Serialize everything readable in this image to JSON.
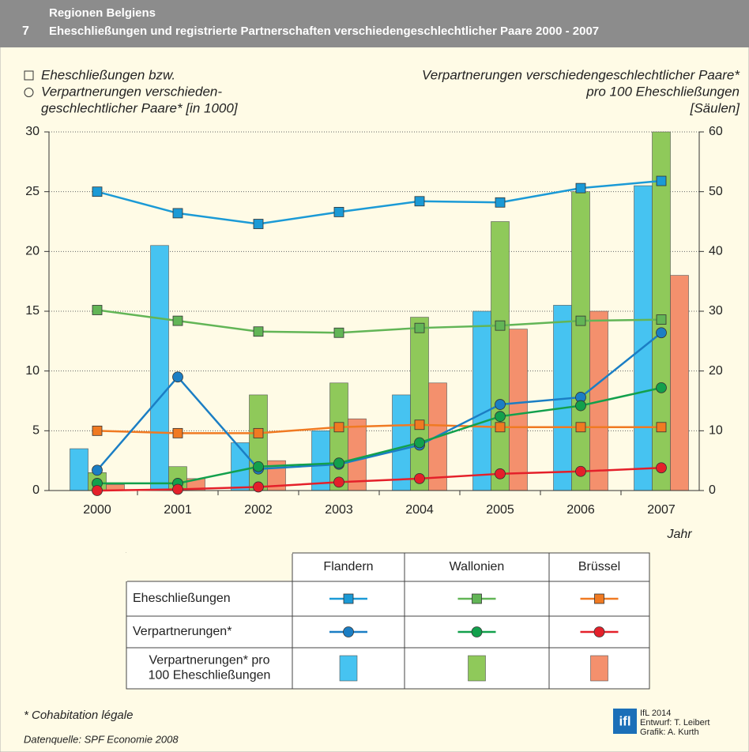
{
  "header": {
    "number": "7",
    "title": "Regionen Belgiens",
    "subtitle": "Eheschließungen und registrierte Partnerschaften verschiedengeschlechtlicher Paare 2000 - 2007"
  },
  "chart_data": {
    "type": "bar_line",
    "y_label": [
      "Eheschließungen bzw.",
      "Verpartnerungen verschieden-",
      "geschlechtlicher Paare* [in 1000]"
    ],
    "y2_label": [
      "Verpartnerungen verschiedengeschlechtlicher Paare*",
      "pro 100 Eheschließungen",
      "[Säulen]"
    ],
    "x_label": "Jahr",
    "categories": [
      "2000",
      "2001",
      "2002",
      "2003",
      "2004",
      "2005",
      "2006",
      "2007"
    ],
    "ylim": [
      0,
      30
    ],
    "yticks": [
      0,
      5,
      10,
      15,
      20,
      25,
      30
    ],
    "y2lim": [
      0,
      60
    ],
    "y2ticks": [
      0,
      10,
      20,
      30,
      40,
      50,
      60
    ],
    "grid": true,
    "regions": [
      {
        "name": "Flandern",
        "bar_color": "#46c3f1",
        "marriage_color": "#1b9ad6",
        "partnership_color": "#1b7ec4",
        "bars": [
          7,
          41,
          8,
          10,
          16,
          30,
          31,
          51
        ],
        "marriages": [
          25.0,
          23.2,
          22.3,
          23.3,
          24.2,
          24.1,
          25.3,
          25.9
        ],
        "partnerships": [
          1.7,
          9.5,
          1.8,
          2.2,
          3.8,
          7.2,
          7.8,
          13.2
        ]
      },
      {
        "name": "Wallonien",
        "bar_color": "#8fc95a",
        "marriage_color": "#62b556",
        "partnership_color": "#12a04c",
        "bars": [
          3,
          4,
          16,
          18,
          29,
          45,
          50,
          60
        ],
        "marriages": [
          15.1,
          14.2,
          13.3,
          13.2,
          13.6,
          13.8,
          14.2,
          14.3
        ],
        "partnerships": [
          0.6,
          0.6,
          2.0,
          2.3,
          4.0,
          6.2,
          7.1,
          8.6
        ]
      },
      {
        "name": "Brüssel",
        "bar_color": "#f4906d",
        "marriage_color": "#f07a22",
        "partnership_color": "#e4202a",
        "bars": [
          1,
          2,
          5,
          12,
          18,
          27,
          30,
          36
        ],
        "marriages": [
          5.0,
          4.8,
          4.8,
          5.3,
          5.5,
          5.3,
          5.3,
          5.3
        ],
        "partnerships": [
          0.0,
          0.1,
          0.3,
          0.7,
          1.0,
          1.4,
          1.6,
          1.9
        ]
      }
    ],
    "legend_rows": [
      [
        "Eheschließungen"
      ],
      [
        "Verpartnerungen*"
      ],
      [
        "Verpartnerungen* pro",
        "100 Eheschließungen"
      ]
    ]
  },
  "footnote": "* Cohabitation légale",
  "source": "Datenquelle: SPF Economie 2008",
  "logo": "ifl",
  "credits": [
    "IfL 2014",
    "Entwurf: T. Leibert",
    "Grafik: A. Kurth"
  ]
}
